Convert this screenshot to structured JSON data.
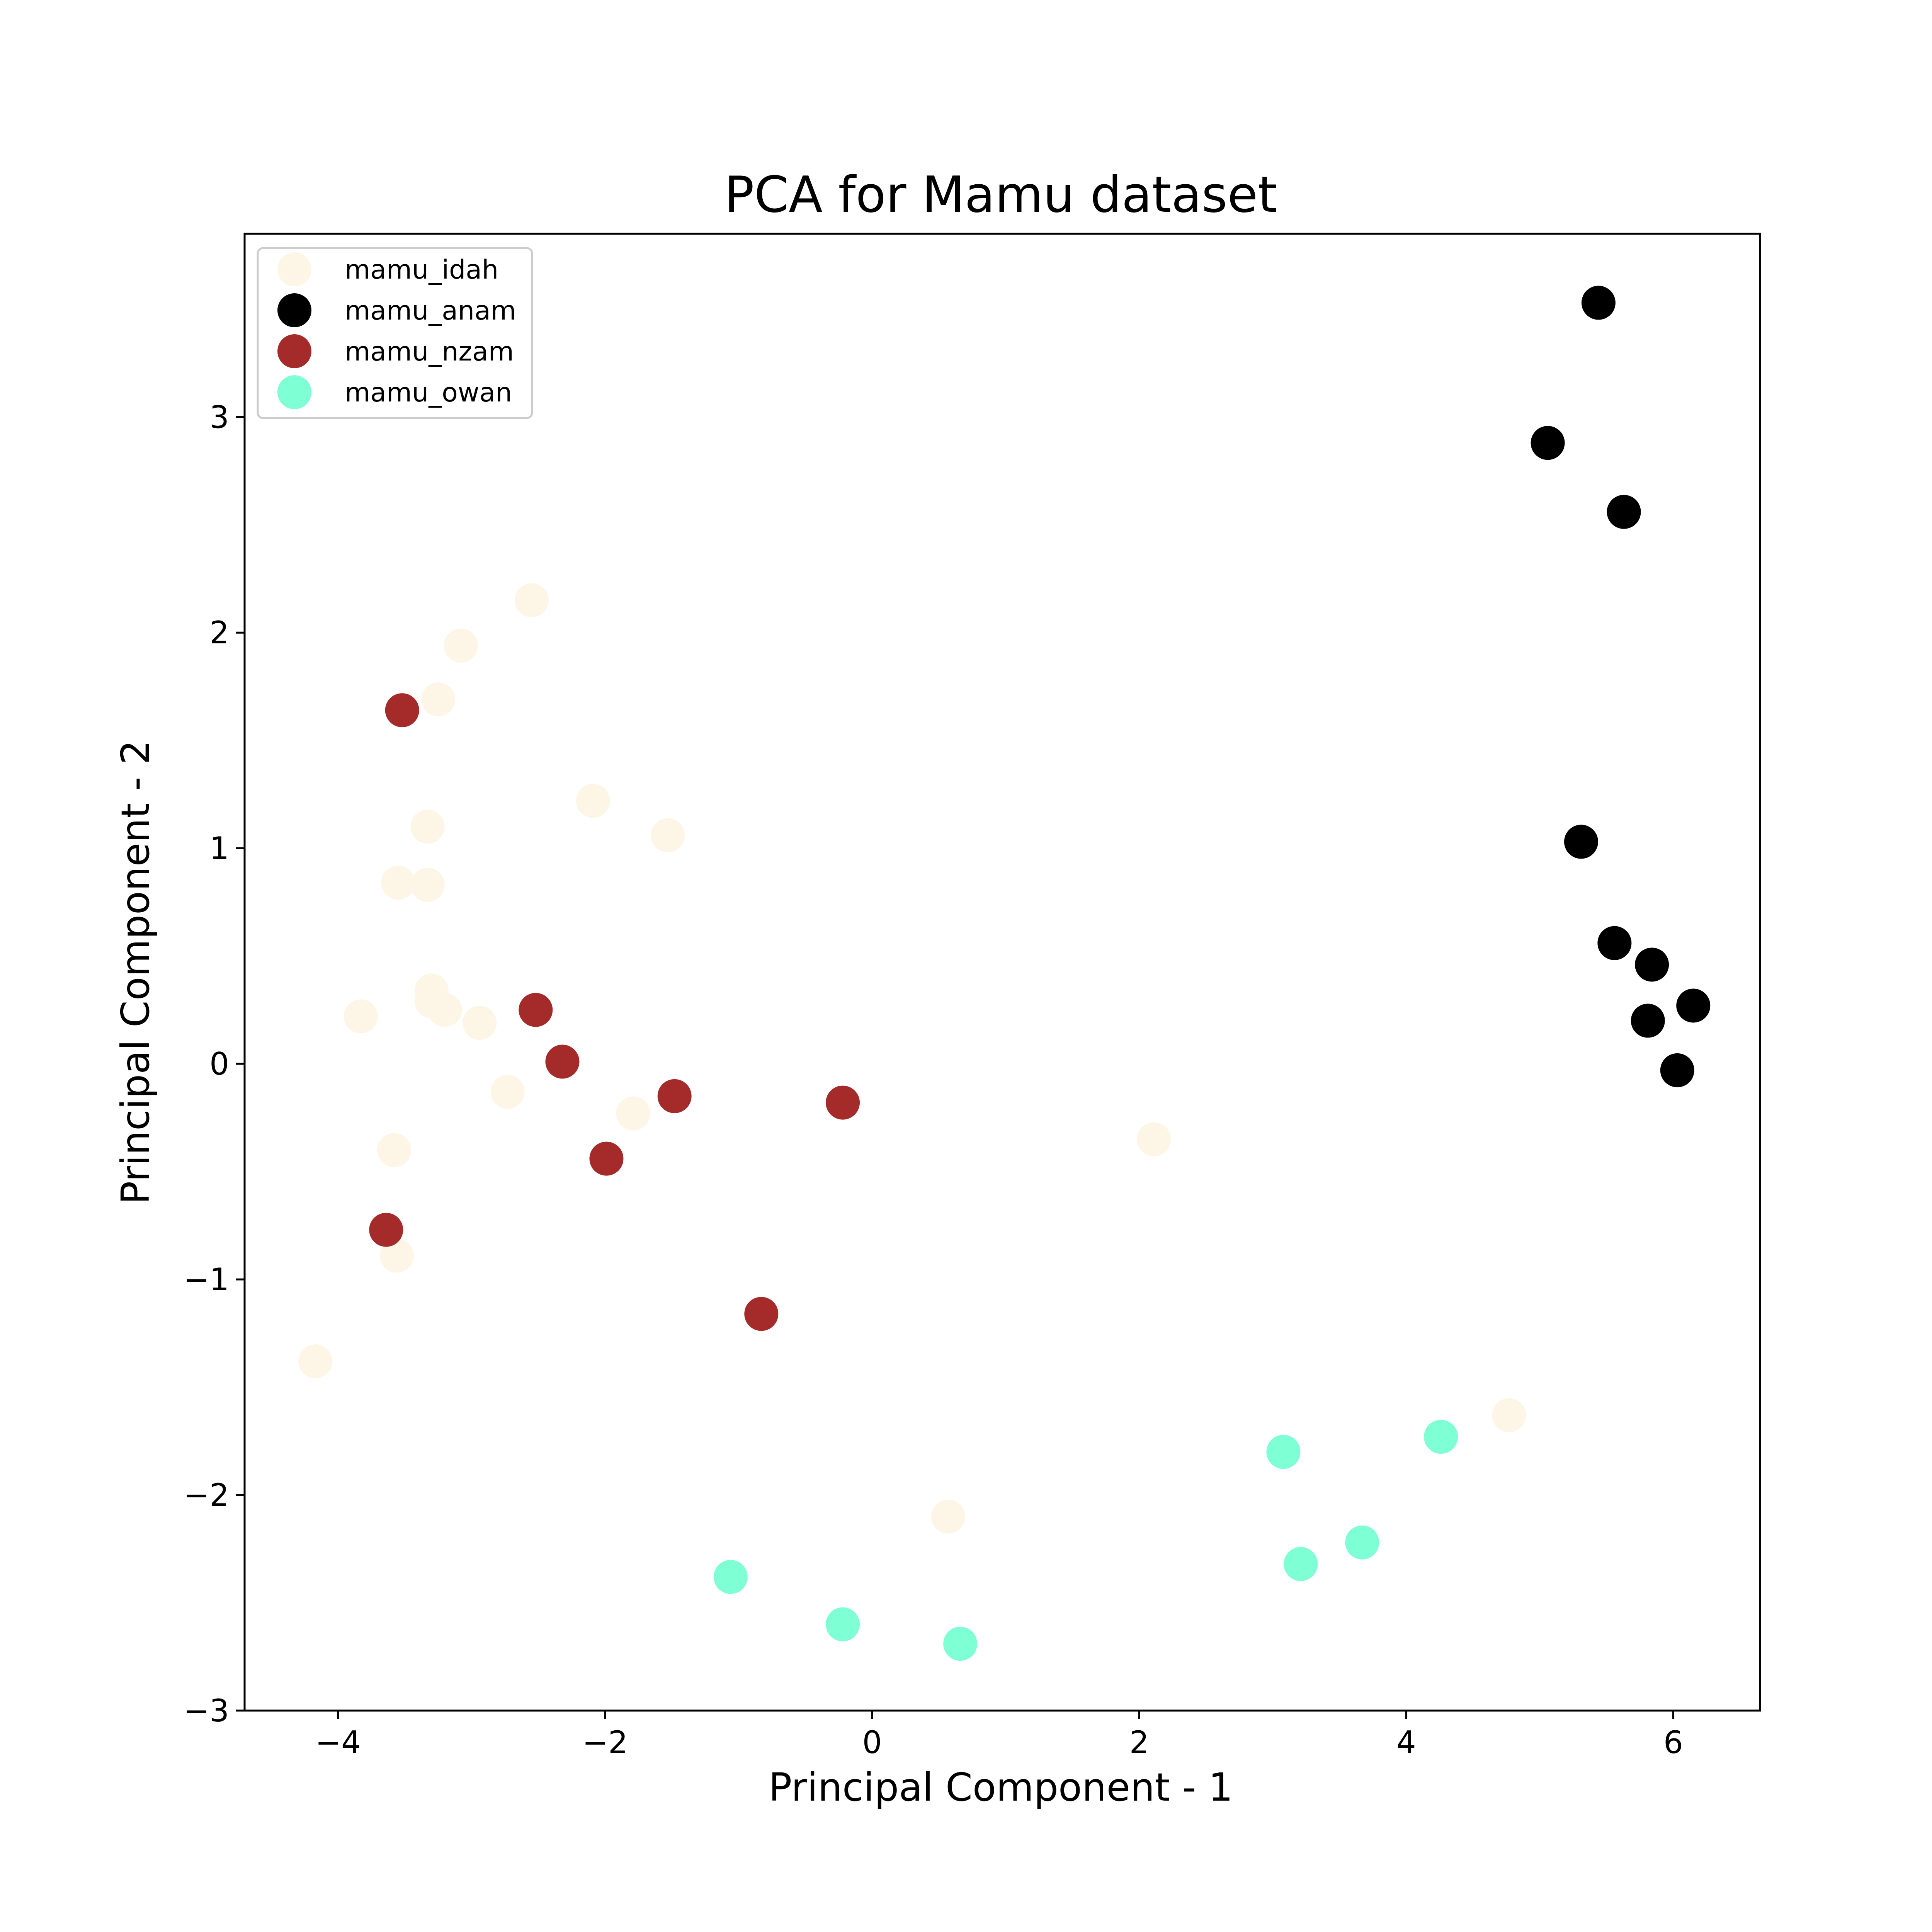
{
  "chart_data": {
    "type": "scatter",
    "title": "PCA for Mamu dataset",
    "xlabel": "Principal Component - 1",
    "ylabel": "Principal Component - 2",
    "xlim": [
      -4.7,
      6.65
    ],
    "ylim": [
      -3.0,
      3.85
    ],
    "xticks": [
      -4,
      -2,
      0,
      2,
      4,
      6
    ],
    "yticks": [
      -3,
      -2,
      -1,
      0,
      1,
      2,
      3
    ],
    "xtick_labels": [
      "−4",
      "−2",
      "0",
      "2",
      "4",
      "6"
    ],
    "ytick_labels": [
      "−3",
      "−2",
      "−1",
      "0",
      "1",
      "2",
      "3"
    ],
    "grid": false,
    "legend_position": "top-left",
    "series": [
      {
        "name": "mamu_idah",
        "color": "#fdf5e6",
        "points": [
          [
            -2.55,
            2.15
          ],
          [
            -3.08,
            1.94
          ],
          [
            -3.25,
            1.69
          ],
          [
            -2.09,
            1.22
          ],
          [
            -1.53,
            1.06
          ],
          [
            -3.33,
            1.1
          ],
          [
            -3.55,
            0.84
          ],
          [
            -3.33,
            0.83
          ],
          [
            -3.3,
            0.34
          ],
          [
            -3.3,
            0.29
          ],
          [
            -3.2,
            0.25
          ],
          [
            -3.83,
            0.22
          ],
          [
            -2.94,
            0.19
          ],
          [
            -2.73,
            -0.13
          ],
          [
            -1.79,
            -0.23
          ],
          [
            -3.58,
            -0.4
          ],
          [
            -3.56,
            -0.89
          ],
          [
            -4.17,
            -1.38
          ],
          [
            2.11,
            -0.35
          ],
          [
            4.77,
            -1.63
          ],
          [
            0.57,
            -2.1
          ]
        ]
      },
      {
        "name": "mamu_anam",
        "color": "#000000",
        "points": [
          [
            5.44,
            3.53
          ],
          [
            5.06,
            2.88
          ],
          [
            5.63,
            2.56
          ],
          [
            5.31,
            1.03
          ],
          [
            5.56,
            0.56
          ],
          [
            5.84,
            0.46
          ],
          [
            6.15,
            0.27
          ],
          [
            5.81,
            0.2
          ],
          [
            6.03,
            -0.03
          ]
        ]
      },
      {
        "name": "mamu_nzam",
        "color": "#a52a2a",
        "points": [
          [
            -3.52,
            1.64
          ],
          [
            -2.52,
            0.25
          ],
          [
            -2.32,
            0.01
          ],
          [
            -1.48,
            -0.15
          ],
          [
            -0.22,
            -0.18
          ],
          [
            -1.99,
            -0.44
          ],
          [
            -3.64,
            -0.77
          ],
          [
            -0.83,
            -1.16
          ]
        ]
      },
      {
        "name": "mamu_owan",
        "color": "#7fffd4",
        "points": [
          [
            3.08,
            -1.8
          ],
          [
            4.26,
            -1.73
          ],
          [
            3.67,
            -2.22
          ],
          [
            3.21,
            -2.32
          ],
          [
            -1.06,
            -2.38
          ],
          [
            -0.22,
            -2.6
          ],
          [
            0.66,
            -2.69
          ]
        ]
      }
    ]
  }
}
